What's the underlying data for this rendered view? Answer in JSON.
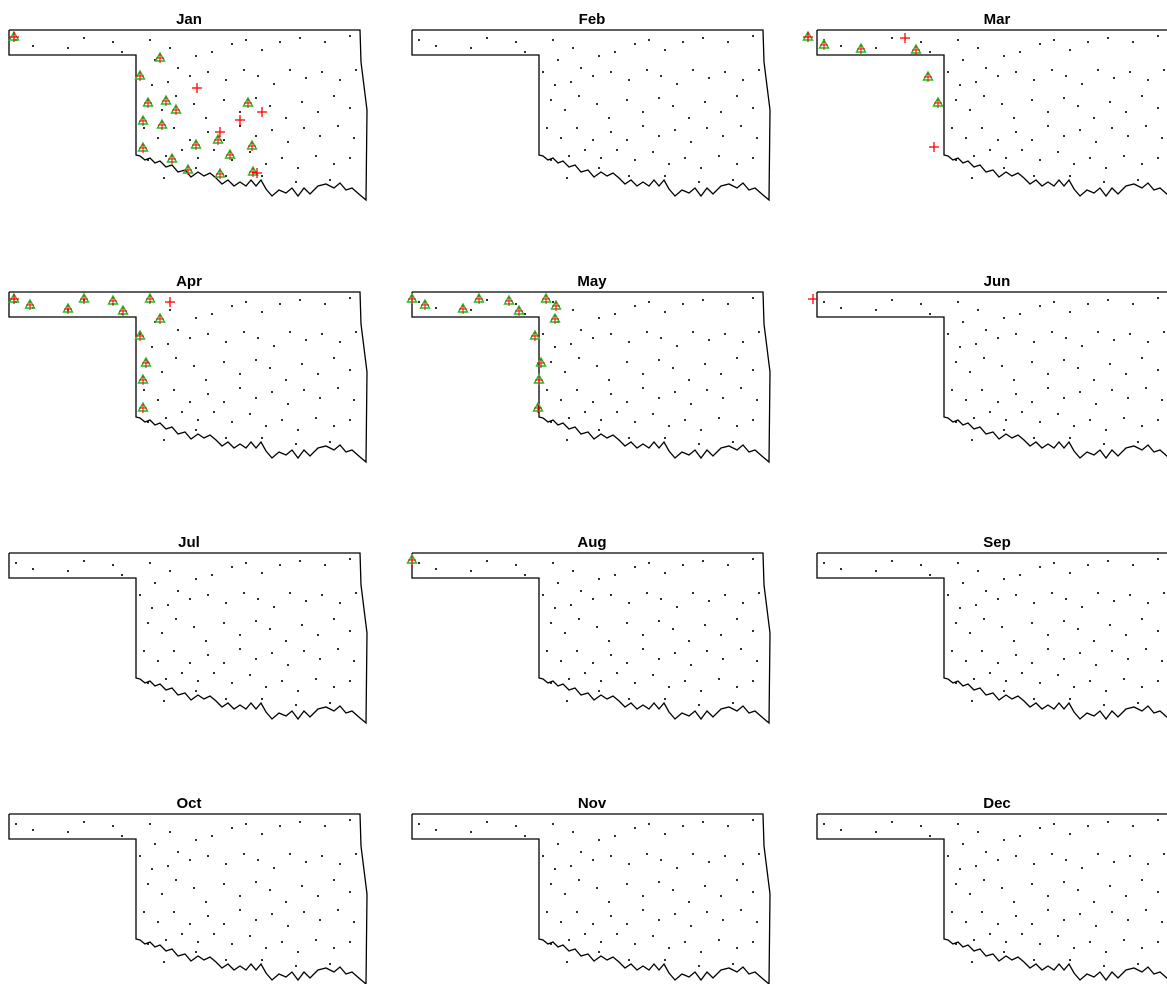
{
  "figure": {
    "colors": {
      "outline": "#000000",
      "station_dot": "#000000",
      "red_cross": "#ff0000",
      "green_marker": "#22bb22"
    },
    "marker_types": [
      "station-dot",
      "red-cross",
      "green-triangle-with-cross"
    ]
  },
  "panels": [
    {
      "title": "Jan"
    },
    {
      "title": "Feb"
    },
    {
      "title": "Mar"
    },
    {
      "title": "Apr"
    },
    {
      "title": "May"
    },
    {
      "title": "Jun"
    },
    {
      "title": "Jul"
    },
    {
      "title": "Aug"
    },
    {
      "title": "Sep"
    },
    {
      "title": "Oct"
    },
    {
      "title": "Nov"
    },
    {
      "title": "Dec"
    }
  ]
}
